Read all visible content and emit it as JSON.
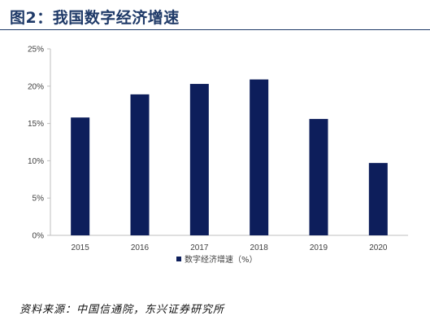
{
  "header": {
    "title": "图2：我国数字经济增速"
  },
  "footer": {
    "source": "资料来源：中国信通院，东兴证券研究所"
  },
  "chart_data": {
    "type": "bar",
    "categories": [
      "2015",
      "2016",
      "2017",
      "2018",
      "2019",
      "2020"
    ],
    "series": [
      {
        "name": "数字经济增速（%）",
        "values": [
          15.8,
          18.9,
          20.3,
          20.9,
          15.6,
          9.7
        ],
        "color": "#0d1e5b"
      }
    ],
    "y_ticks": [
      "0%",
      "5%",
      "10%",
      "15%",
      "20%",
      "25%"
    ],
    "ylim": [
      0,
      25
    ],
    "grid": false,
    "legend_position": "bottom-center",
    "axis_color": "#bfbfbf"
  }
}
